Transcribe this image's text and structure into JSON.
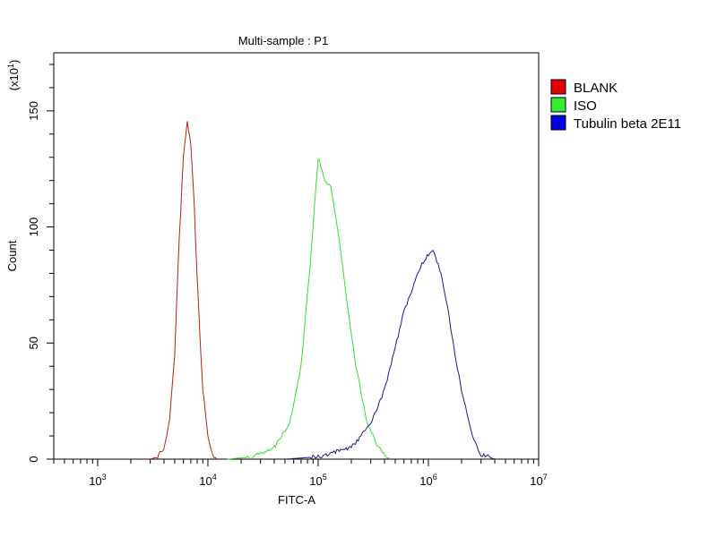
{
  "chart_data": {
    "type": "line",
    "title": "Multi-sample : P1",
    "xlabel": "FITC-A",
    "ylabel": "Count",
    "y_multiplier": {
      "base": "(x10",
      "exp": "1",
      "close": ")"
    },
    "x_scale": "log",
    "xlim": [
      400,
      10000000
    ],
    "ylim": [
      0,
      175
    ],
    "x_ticks": [
      {
        "value": 1000,
        "base": "10",
        "exp": "3"
      },
      {
        "value": 10000,
        "base": "10",
        "exp": "4"
      },
      {
        "value": 100000,
        "base": "10",
        "exp": "5"
      },
      {
        "value": 1000000,
        "base": "10",
        "exp": "6"
      },
      {
        "value": 10000000,
        "base": "10",
        "exp": "7"
      }
    ],
    "y_ticks": [
      {
        "value": 0,
        "label": "0"
      },
      {
        "value": 50,
        "label": "50"
      },
      {
        "value": 100,
        "label": "100"
      },
      {
        "value": 150,
        "label": "150"
      }
    ],
    "grid": false,
    "legend_position": "right",
    "series": [
      {
        "name": "BLANK",
        "color": "#b32020",
        "legend_color": "#e00000",
        "x": [
          3000,
          3500,
          4000,
          4500,
          5000,
          5500,
          6000,
          6500,
          7000,
          7500,
          8000,
          8500,
          9000,
          10000,
          11000,
          12000
        ],
        "y": [
          0,
          1,
          5,
          17,
          45,
          95,
          130,
          145,
          136,
          110,
          78,
          52,
          30,
          10,
          2,
          0
        ]
      },
      {
        "name": "ISO",
        "color": "#33dd33",
        "legend_color": "#33ee33",
        "x": [
          15000,
          25000,
          40000,
          55000,
          70000,
          85000,
          100000,
          115000,
          130000,
          150000,
          180000,
          220000,
          280000,
          350000,
          450000
        ],
        "y": [
          0,
          1,
          5,
          15,
          40,
          85,
          130,
          120,
          118,
          100,
          70,
          40,
          15,
          5,
          0
        ]
      },
      {
        "name": "Tubulin beta 2E11",
        "color": "#1a1a90",
        "legend_color": "#0000e0",
        "x": [
          50000,
          100000,
          200000,
          300000,
          400000,
          500000,
          600000,
          700000,
          800000,
          900000,
          1000000,
          1100000,
          1300000,
          1500000,
          1700000,
          2000000,
          2500000,
          3000000,
          4000000
        ],
        "y": [
          0,
          1,
          5,
          15,
          30,
          48,
          64,
          72,
          80,
          85,
          88,
          90,
          80,
          65,
          48,
          30,
          10,
          2,
          0
        ]
      }
    ]
  }
}
